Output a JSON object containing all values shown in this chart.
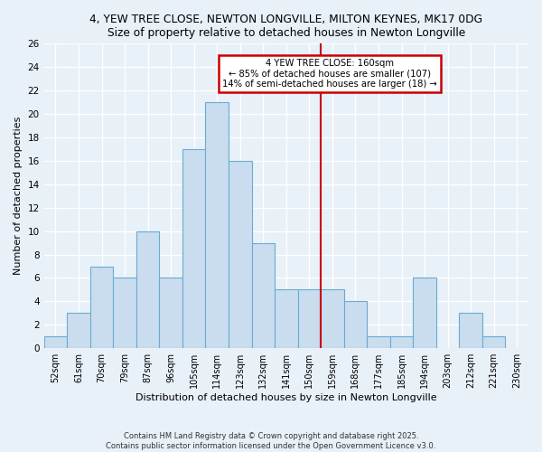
{
  "title": "4, YEW TREE CLOSE, NEWTON LONGVILLE, MILTON KEYNES, MK17 0DG",
  "subtitle": "Size of property relative to detached houses in Newton Longville",
  "xlabel": "Distribution of detached houses by size in Newton Longville",
  "ylabel": "Number of detached properties",
  "footer_line1": "Contains HM Land Registry data © Crown copyright and database right 2025.",
  "footer_line2": "Contains public sector information licensed under the Open Government Licence v3.0.",
  "bar_labels": [
    "52sqm",
    "61sqm",
    "70sqm",
    "79sqm",
    "87sqm",
    "96sqm",
    "105sqm",
    "114sqm",
    "123sqm",
    "132sqm",
    "141sqm",
    "150sqm",
    "159sqm",
    "168sqm",
    "177sqm",
    "185sqm",
    "194sqm",
    "203sqm",
    "212sqm",
    "221sqm",
    "230sqm"
  ],
  "bar_heights": [
    1,
    3,
    7,
    6,
    10,
    6,
    17,
    21,
    16,
    9,
    5,
    5,
    5,
    4,
    1,
    1,
    6,
    0,
    3,
    1,
    0
  ],
  "bar_color": "#c9ddef",
  "bar_edge_color": "#6aabd2",
  "vline_color": "#cc0000",
  "vline_index": 12,
  "annotation_title": "4 YEW TREE CLOSE: 160sqm",
  "annotation_line1": "← 85% of detached houses are smaller (107)",
  "annotation_line2": "14% of semi-detached houses are larger (18) →",
  "annotation_box_color": "#ffffff",
  "annotation_box_edge": "#cc0000",
  "ylim": [
    0,
    26
  ],
  "yticks": [
    0,
    2,
    4,
    6,
    8,
    10,
    12,
    14,
    16,
    18,
    20,
    22,
    24,
    26
  ],
  "background_color": "#e8f0f8",
  "grid_color": "#ffffff"
}
